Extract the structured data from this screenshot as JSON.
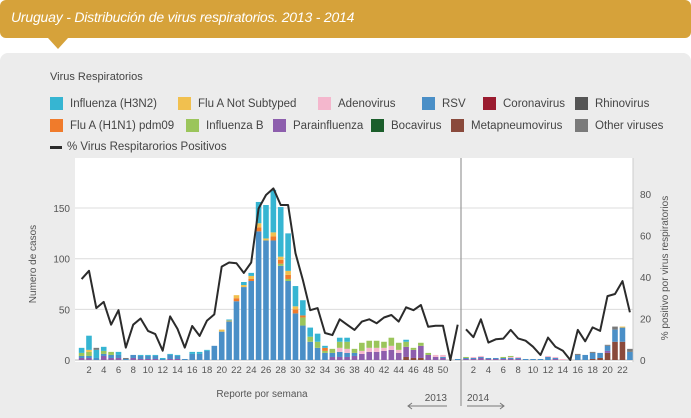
{
  "header": {
    "title": "Uruguay - Distribución de virus respiratorios. 2013 - 2014"
  },
  "legend": {
    "title": "Virus Respiratorios",
    "line_label": "% Virus Respitarorios Positivos"
  },
  "chart_data": {
    "type": "bar",
    "title": "Uruguay - Distribución de virus respiratorios. 2013 - 2014",
    "xlabel": "Reporte por semana",
    "ylabel": "Numero de casos",
    "y2label": "% positivo por virus respiratorios",
    "ylim": [
      0,
      164
    ],
    "y2lim": [
      0,
      80
    ],
    "yticks": [
      0,
      50,
      100,
      150
    ],
    "y2ticks": [
      0,
      20,
      40,
      60,
      80
    ],
    "year_labels": [
      "2013",
      "2014"
    ],
    "weeks_per_year": [
      52,
      23
    ],
    "xtick_labels_2013": [
      "2",
      "4",
      "6",
      "8",
      "10",
      "12",
      "14",
      "16",
      "18",
      "20",
      "22",
      "24",
      "26",
      "28",
      "30",
      "32",
      "34",
      "36",
      "38",
      "40",
      "42",
      "44",
      "46",
      "48",
      "50"
    ],
    "xtick_labels_2014": [
      "2",
      "4",
      "6",
      "8",
      "10",
      "12",
      "14",
      "16",
      "18",
      "20",
      "22"
    ],
    "stack_order": [
      "metapneumo",
      "para",
      "rsv",
      "adeno",
      "fluB",
      "h1n1",
      "fluANS",
      "h3n2",
      "other",
      "corona",
      "rhino",
      "boca"
    ],
    "series": [
      {
        "key": "h3n2",
        "name": "Influenza (H3N2)",
        "color": "#36b5d2",
        "values": [
          5,
          14,
          8,
          4,
          0,
          3,
          0,
          0,
          1,
          1,
          1,
          1,
          1,
          1,
          0,
          2,
          2,
          1,
          0,
          0,
          1,
          0,
          3,
          3,
          21,
          33,
          42,
          49,
          37,
          20,
          15,
          9,
          8,
          2,
          0,
          4,
          4,
          0,
          0,
          0,
          0,
          0,
          0,
          0,
          2,
          0,
          0,
          0,
          0,
          0,
          0,
          0,
          0,
          0,
          0,
          0,
          0,
          0,
          0,
          0,
          0,
          0,
          0,
          0,
          0,
          0,
          0,
          0,
          0,
          0,
          0,
          0,
          0,
          0,
          0
        ]
      },
      {
        "key": "fluANS",
        "name": "Flu A Not Subtyped",
        "color": "#f1c04f",
        "values": [
          0,
          2,
          0,
          0,
          0,
          0,
          0,
          0,
          0,
          0,
          0,
          0,
          0,
          0,
          0,
          0,
          0,
          0,
          0,
          2,
          1,
          3,
          2,
          3,
          4,
          2,
          4,
          3,
          4,
          3,
          0,
          0,
          0,
          0,
          0,
          0,
          0,
          0,
          0,
          0,
          0,
          0,
          0,
          0,
          0,
          0,
          0,
          0,
          0,
          0,
          0,
          0,
          0,
          0,
          0,
          0,
          0,
          0,
          0,
          0,
          0,
          0,
          0,
          0,
          0,
          0,
          0,
          0,
          0,
          0,
          0,
          0,
          0,
          1,
          0
        ]
      },
      {
        "key": "adeno",
        "name": "Adenovirus",
        "color": "#f4b7cd",
        "values": [
          0,
          0,
          0,
          0,
          0,
          0,
          0,
          0,
          0,
          0,
          0,
          0,
          0,
          0,
          0,
          0,
          0,
          0,
          0,
          0,
          0,
          0,
          0,
          0,
          0,
          0,
          0,
          0,
          0,
          0,
          0,
          0,
          0,
          0,
          0,
          4,
          4,
          0,
          3,
          4,
          4,
          3,
          4,
          3,
          0,
          0,
          0,
          0,
          2,
          2,
          0,
          0,
          0,
          1,
          1,
          0,
          0,
          0,
          1,
          1,
          0,
          0,
          0,
          1,
          1,
          1,
          0,
          0,
          0,
          0,
          0,
          0,
          0,
          0,
          0
        ]
      },
      {
        "key": "rsv",
        "name": "RSV",
        "color": "#4a8fc7",
        "values": [
          2,
          2,
          2,
          2,
          3,
          3,
          1,
          3,
          3,
          3,
          3,
          1,
          4,
          3,
          1,
          6,
          6,
          9,
          14,
          28,
          38,
          58,
          72,
          78,
          127,
          118,
          118,
          93,
          78,
          46,
          34,
          18,
          12,
          7,
          4,
          5,
          4,
          3,
          0,
          0,
          0,
          0,
          0,
          0,
          0,
          0,
          0,
          0,
          0,
          1,
          0,
          1,
          1,
          1,
          1,
          1,
          1,
          1,
          1,
          1,
          1,
          1,
          1,
          3,
          1,
          0,
          0,
          5,
          5,
          6,
          5,
          5,
          12,
          14,
          8
        ]
      },
      {
        "key": "corona",
        "name": "Coronavirus",
        "color": "#9a1b2f",
        "values": [
          0,
          0,
          0,
          0,
          0,
          0,
          0,
          0,
          0,
          0,
          0,
          0,
          0,
          0,
          0,
          0,
          0,
          0,
          0,
          0,
          0,
          0,
          0,
          0,
          0,
          0,
          0,
          0,
          0,
          0,
          0,
          0,
          0,
          0,
          0,
          0,
          0,
          0,
          0,
          0,
          0,
          0,
          0,
          0,
          0,
          0,
          0,
          0,
          0,
          0,
          0,
          0,
          0,
          0,
          0,
          0,
          0,
          0,
          0,
          0,
          0,
          0,
          0,
          0,
          0,
          0,
          0,
          0,
          0,
          0,
          0,
          0,
          0,
          0,
          0
        ]
      },
      {
        "key": "rhino",
        "name": "Rhinovirus",
        "color": "#555555",
        "values": [
          0,
          0,
          0,
          0,
          0,
          0,
          0,
          0,
          0,
          0,
          0,
          0,
          0,
          0,
          0,
          0,
          0,
          0,
          0,
          0,
          0,
          0,
          0,
          0,
          0,
          0,
          0,
          0,
          0,
          0,
          0,
          0,
          0,
          0,
          0,
          0,
          0,
          0,
          0,
          0,
          0,
          0,
          0,
          0,
          0,
          0,
          0,
          0,
          0,
          0,
          0,
          0,
          0,
          0,
          0,
          0,
          0,
          0,
          0,
          0,
          0,
          0,
          0,
          0,
          0,
          0,
          0,
          0,
          0,
          0,
          0,
          0,
          0,
          0,
          0
        ]
      },
      {
        "key": "h1n1",
        "name": "Flu A (H1N1) pdm09",
        "color": "#f07b2b",
        "values": [
          0,
          0,
          0,
          0,
          0,
          0,
          0,
          0,
          0,
          0,
          0,
          0,
          0,
          0,
          0,
          0,
          0,
          0,
          0,
          0,
          0,
          3,
          0,
          2,
          4,
          0,
          4,
          4,
          4,
          4,
          2,
          0,
          0,
          3,
          0,
          0,
          0,
          0,
          0,
          0,
          0,
          0,
          0,
          0,
          0,
          0,
          0,
          0,
          0,
          0,
          0,
          0,
          0,
          0,
          0,
          0,
          0,
          0,
          0,
          0,
          0,
          0,
          0,
          0,
          0,
          0,
          0,
          0,
          0,
          0,
          0,
          0,
          0,
          0,
          0
        ]
      },
      {
        "key": "fluB",
        "name": "Influenza B",
        "color": "#9bc55b",
        "values": [
          3,
          4,
          0,
          3,
          3,
          0,
          0,
          0,
          0,
          0,
          0,
          0,
          0,
          0,
          0,
          0,
          0,
          0,
          0,
          0,
          0,
          0,
          0,
          0,
          0,
          0,
          0,
          2,
          2,
          0,
          8,
          5,
          6,
          2,
          4,
          6,
          7,
          4,
          8,
          7,
          7,
          6,
          8,
          7,
          5,
          2,
          3,
          2,
          0,
          0,
          0,
          0,
          1,
          0,
          0,
          0,
          0,
          1,
          1,
          0,
          0,
          0,
          0,
          0,
          0,
          0,
          0,
          0,
          0,
          0,
          0,
          0,
          0,
          0,
          0
        ]
      },
      {
        "key": "para",
        "name": "Parainfluenza",
        "color": "#8d5ead",
        "values": [
          2,
          2,
          0,
          4,
          2,
          2,
          0,
          2,
          1,
          1,
          1,
          0,
          1,
          1,
          0,
          0,
          0,
          0,
          0,
          0,
          0,
          0,
          0,
          0,
          0,
          0,
          0,
          0,
          0,
          0,
          0,
          0,
          0,
          0,
          3,
          3,
          3,
          4,
          6,
          8,
          8,
          9,
          10,
          7,
          10,
          8,
          12,
          5,
          3,
          2,
          0,
          0,
          1,
          1,
          2,
          1,
          1,
          1,
          1,
          1,
          0,
          0,
          0,
          0,
          1,
          0,
          0,
          0,
          0,
          0,
          0,
          2,
          0,
          0,
          0
        ]
      },
      {
        "key": "boca",
        "name": "Bocavirus",
        "color": "#1b5e2b",
        "values": [
          0,
          0,
          0,
          0,
          0,
          0,
          0,
          0,
          0,
          0,
          0,
          0,
          0,
          0,
          0,
          0,
          0,
          0,
          0,
          0,
          0,
          0,
          0,
          0,
          0,
          0,
          0,
          0,
          0,
          0,
          0,
          0,
          0,
          0,
          0,
          0,
          0,
          0,
          0,
          0,
          0,
          0,
          0,
          0,
          0,
          0,
          0,
          0,
          0,
          0,
          0,
          0,
          0,
          0,
          0,
          0,
          0,
          0,
          0,
          0,
          0,
          0,
          0,
          0,
          0,
          0,
          0,
          0,
          0,
          0,
          0,
          0,
          0,
          0,
          0
        ]
      },
      {
        "key": "metapneumo",
        "name": "Metapneumovirus",
        "color": "#8a4a3c",
        "values": [
          0,
          0,
          0,
          0,
          0,
          0,
          0,
          0,
          0,
          0,
          0,
          0,
          0,
          0,
          0,
          0,
          0,
          0,
          0,
          0,
          0,
          0,
          0,
          0,
          0,
          0,
          0,
          0,
          0,
          0,
          0,
          0,
          0,
          0,
          0,
          0,
          0,
          0,
          0,
          0,
          0,
          0,
          0,
          0,
          3,
          2,
          2,
          0,
          0,
          0,
          0,
          0,
          0,
          0,
          0,
          0,
          0,
          0,
          0,
          0,
          0,
          0,
          0,
          0,
          0,
          0,
          0,
          0,
          0,
          1,
          2,
          7,
          18,
          18,
          0
        ]
      },
      {
        "key": "other",
        "name": "Other viruses",
        "color": "#7a7a7a",
        "values": [
          0,
          0,
          2,
          0,
          0,
          0,
          1,
          0,
          0,
          0,
          0,
          0,
          0,
          0,
          0,
          0,
          0,
          0,
          0,
          0,
          0,
          0,
          0,
          0,
          0,
          0,
          0,
          0,
          0,
          0,
          0,
          0,
          0,
          0,
          0,
          0,
          0,
          0,
          0,
          0,
          0,
          0,
          0,
          0,
          0,
          0,
          0,
          0,
          0,
          0,
          0,
          0,
          0,
          0,
          0,
          0,
          0,
          0,
          0,
          0,
          0,
          0,
          0,
          0,
          0,
          0,
          0,
          1,
          0,
          1,
          0,
          1,
          3,
          0,
          3
        ]
      }
    ],
    "line": {
      "name": "% Virus Respitarorios Positivos",
      "color": "#2b2b2b",
      "values": [
        39,
        43,
        25,
        28,
        17,
        24,
        6,
        17,
        20,
        14,
        12.5,
        4.5,
        21,
        15,
        6,
        16.4,
        11.6,
        19,
        22,
        45,
        47,
        46.6,
        42,
        47,
        73,
        79.5,
        82.7,
        74.7,
        74.7,
        51.4,
        38.5,
        24,
        25,
        13,
        12,
        19.6,
        17,
        14.5,
        18.5,
        19.6,
        17.7,
        20.5,
        21.7,
        18.5,
        25.4,
        24,
        26.5,
        16,
        16.5,
        16.5,
        0,
        17,
        14.8,
        11,
        19.6,
        8.4,
        10,
        10.3,
        14.5,
        10.4,
        9.3,
        6.4,
        2.4,
        10.8,
        6.4,
        4.5,
        0,
        14.5,
        9,
        15.7,
        14,
        30.8,
        31.8,
        38,
        23
      ]
    },
    "grid": true,
    "legend_position": "top"
  }
}
